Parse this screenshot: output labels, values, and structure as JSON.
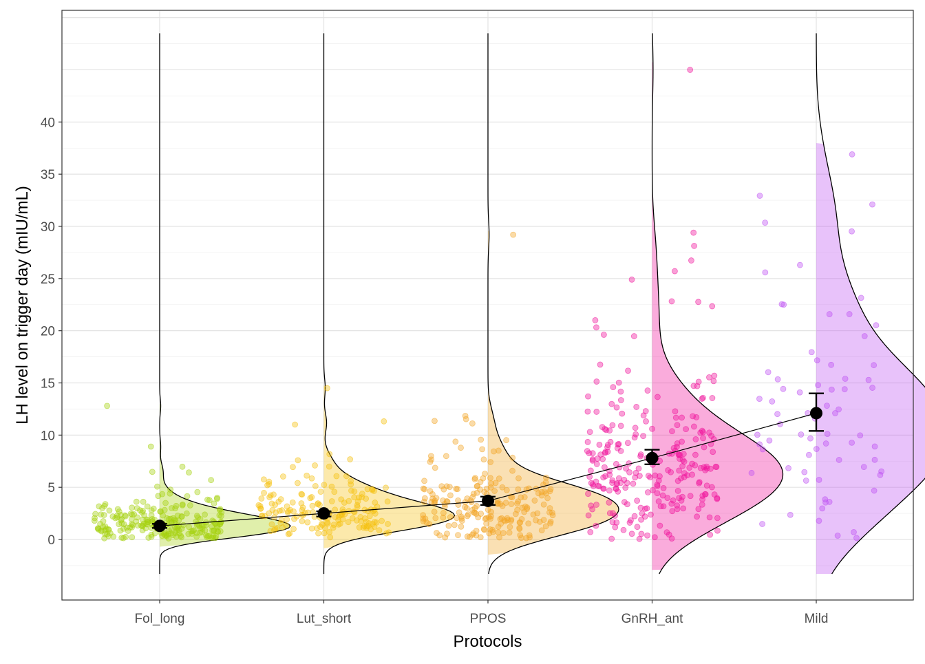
{
  "chart_data": {
    "type": "raincloud",
    "xlabel": "Protocols",
    "ylabel": "LH level on trigger day (mIU/mL)",
    "categories": [
      "Fol_long",
      "Lut_short",
      "PPOS",
      "GnRH_ant",
      "Mild"
    ],
    "colors": [
      "#a6d10e",
      "#f5c10f",
      "#f2a526",
      "#f0129a",
      "#bd4ff2"
    ],
    "ylim": [
      -5.8,
      50.7
    ],
    "yticks": [
      0,
      5,
      10,
      15,
      20,
      25,
      30,
      35,
      40
    ],
    "grid": true,
    "legend": "none",
    "means": [
      1.3,
      2.5,
      3.7,
      7.8,
      12.1
    ],
    "ci_lower": [
      1.1,
      2.2,
      3.3,
      7.2,
      10.4
    ],
    "ci_upper": [
      1.5,
      2.7,
      4.1,
      8.6,
      14.0
    ],
    "density_ranges": [
      [
        -3.3,
        48.6
      ],
      [
        -3.3,
        48.6
      ],
      [
        -3.3,
        48.6
      ],
      [
        -3.3,
        48.6
      ],
      [
        -3.3,
        48.6
      ]
    ],
    "distributions": [
      {
        "n": 230,
        "mode": 1.0,
        "sd": 1.2,
        "max": 12.8
      },
      {
        "n": 180,
        "mode": 2.0,
        "sd": 1.6,
        "max": 14.5
      },
      {
        "n": 210,
        "mode": 1.8,
        "sd": 2.4,
        "max": 29.2
      },
      {
        "n": 260,
        "mode": 4.5,
        "sd": 4.5,
        "max": 45.0
      },
      {
        "n": 70,
        "mode": 8.5,
        "sd": 6.5,
        "max": 36.9
      }
    ]
  }
}
